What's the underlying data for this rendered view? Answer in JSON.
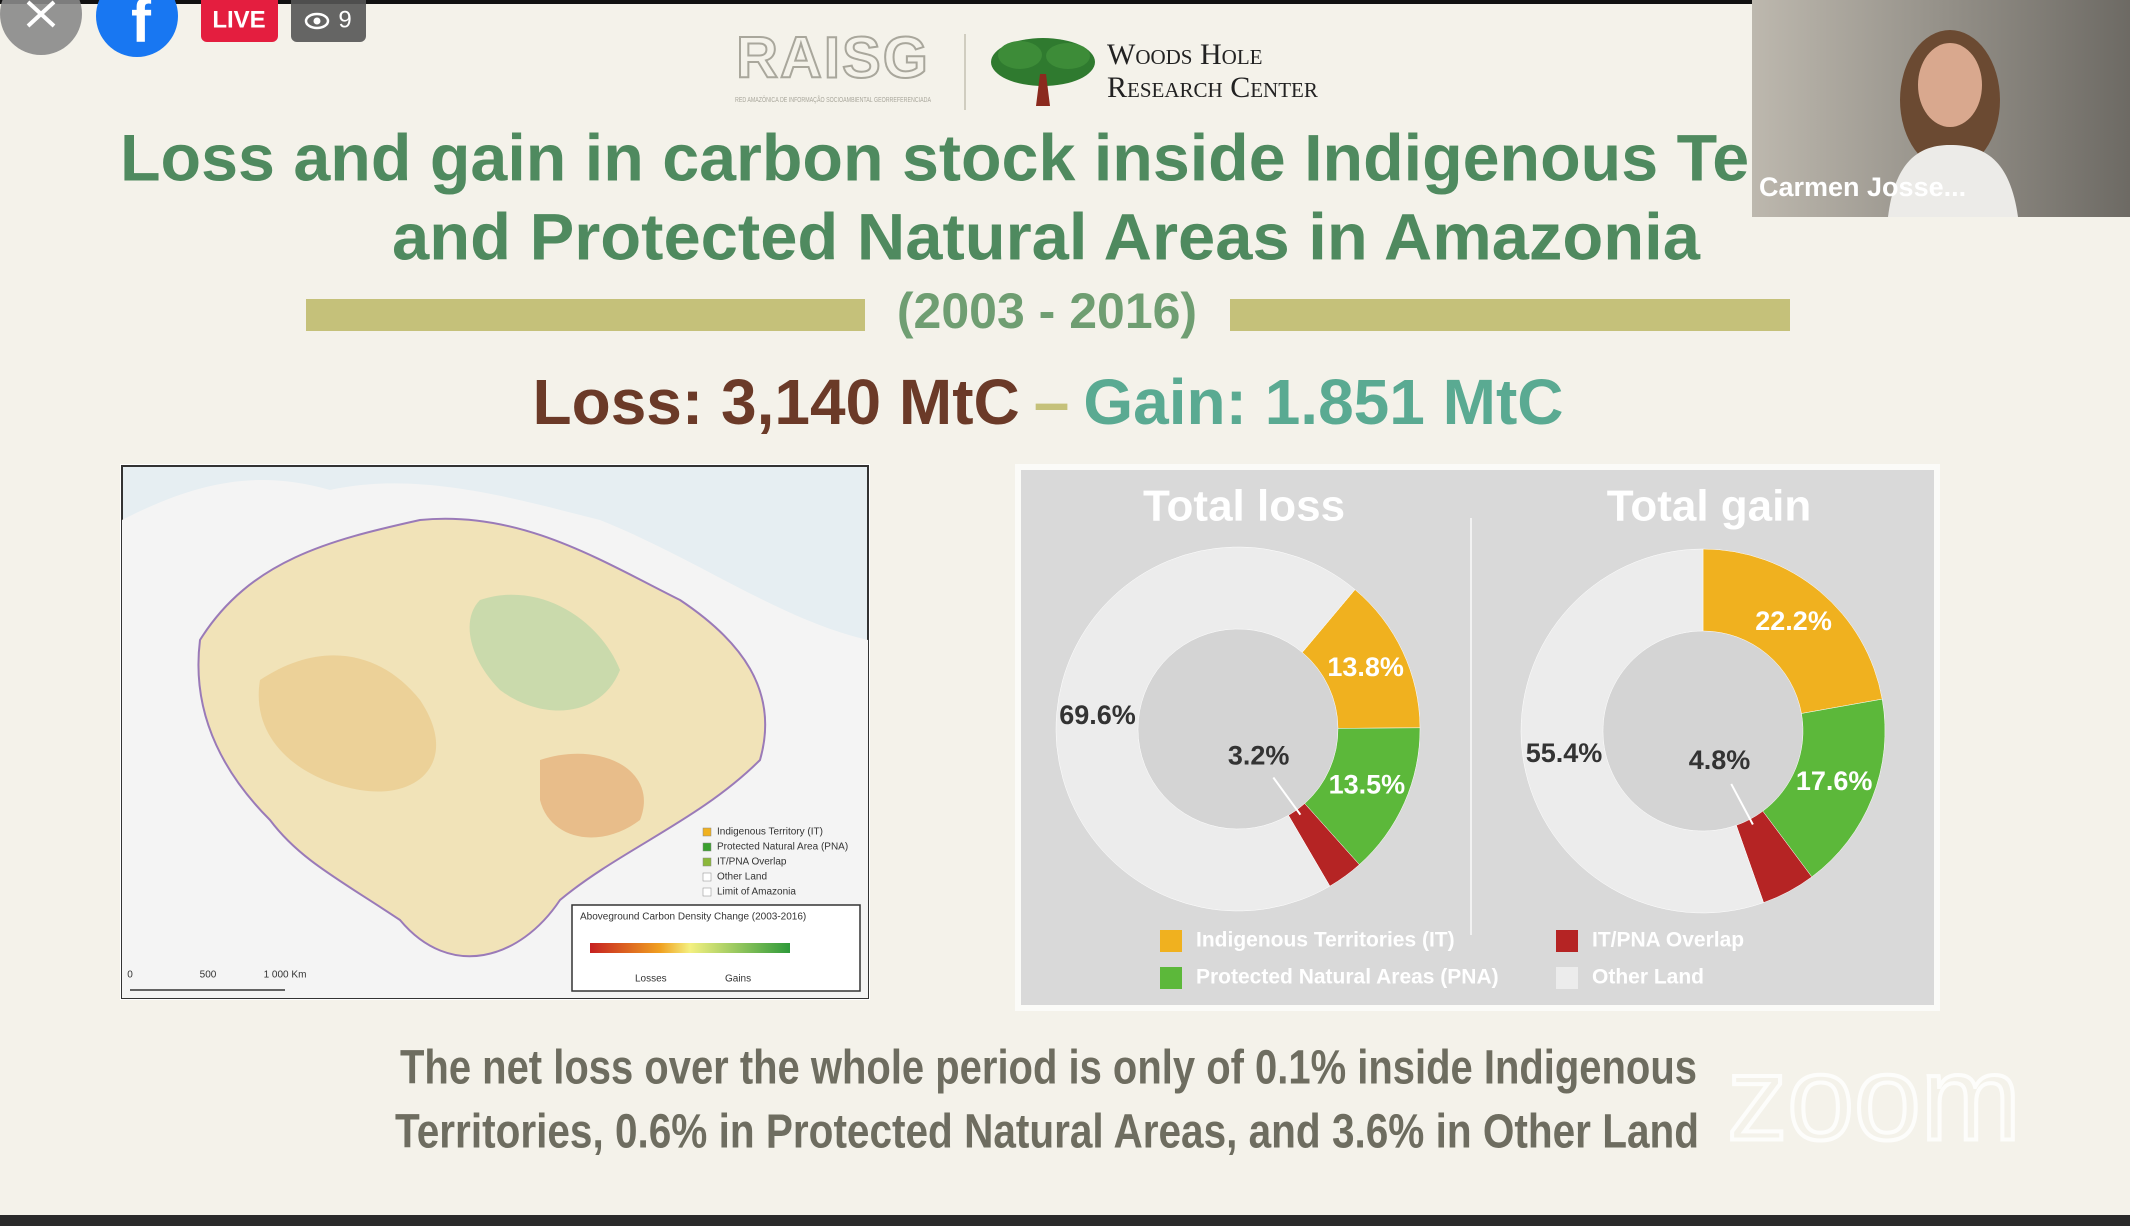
{
  "overlay": {
    "live_label": "LIVE",
    "viewer_count": 9,
    "participant_name": "Carmen Josse...",
    "watermark": "zoom"
  },
  "slide": {
    "logo_raisg": "RAISG",
    "logo_raisg_sub": "RED AMAZÔNICA DE INFORMAÇÃO SOCIOAMBIENTAL GEORREFERENCIADA",
    "logo_whrc": [
      "Woods Hole",
      "Research Center"
    ],
    "title": [
      "Loss and gain in carbon stock inside Indigenous Territories",
      "and Protected Natural Areas in Amazonia"
    ],
    "period": "(2003 - 2016)",
    "loss": "Loss: 3,140 MtC",
    "separator": "–",
    "gain": "Gain: 1.851 MtC",
    "map": {
      "legend": [
        "Indigenous Territory (IT)",
        "Protected Natural Area (PNA)",
        "IT/PNA Overlap",
        "Other Land",
        "Limit of Amazonia"
      ],
      "scale_title": "Aboveground Carbon Density Change (2003-2016)",
      "scale_losses": "Losses",
      "scale_gains": "Gains",
      "distance": [
        "0",
        "500",
        "1 000 Km"
      ]
    },
    "footnote": [
      "The net loss over the whole period is only of 0.1% inside Indigenous",
      "Territories, 0.6% in Protected Natural Areas, and 3.6% in Other Land"
    ]
  },
  "chart_data": {
    "type": "donut",
    "categories": [
      "Indigenous Territories (IT)",
      "Protected Natural Areas (PNA)",
      "IT/PNA Overlap",
      "Other Land"
    ],
    "colors": [
      "#f0b11f",
      "#5cb83a",
      "#b52424",
      "#ececec"
    ],
    "series": [
      {
        "name": "Total loss",
        "startangle": 40,
        "values": [
          13.8,
          13.5,
          3.2,
          69.6
        ],
        "value_labels": [
          "13.8%",
          "13.5%",
          "3.2%",
          "69.6%"
        ]
      },
      {
        "name": "Total gain",
        "startangle": 0,
        "values": [
          22.2,
          17.6,
          4.8,
          55.4
        ],
        "value_labels": [
          "22.2%",
          "17.6%",
          "4.8%",
          "55.4%"
        ]
      }
    ]
  }
}
